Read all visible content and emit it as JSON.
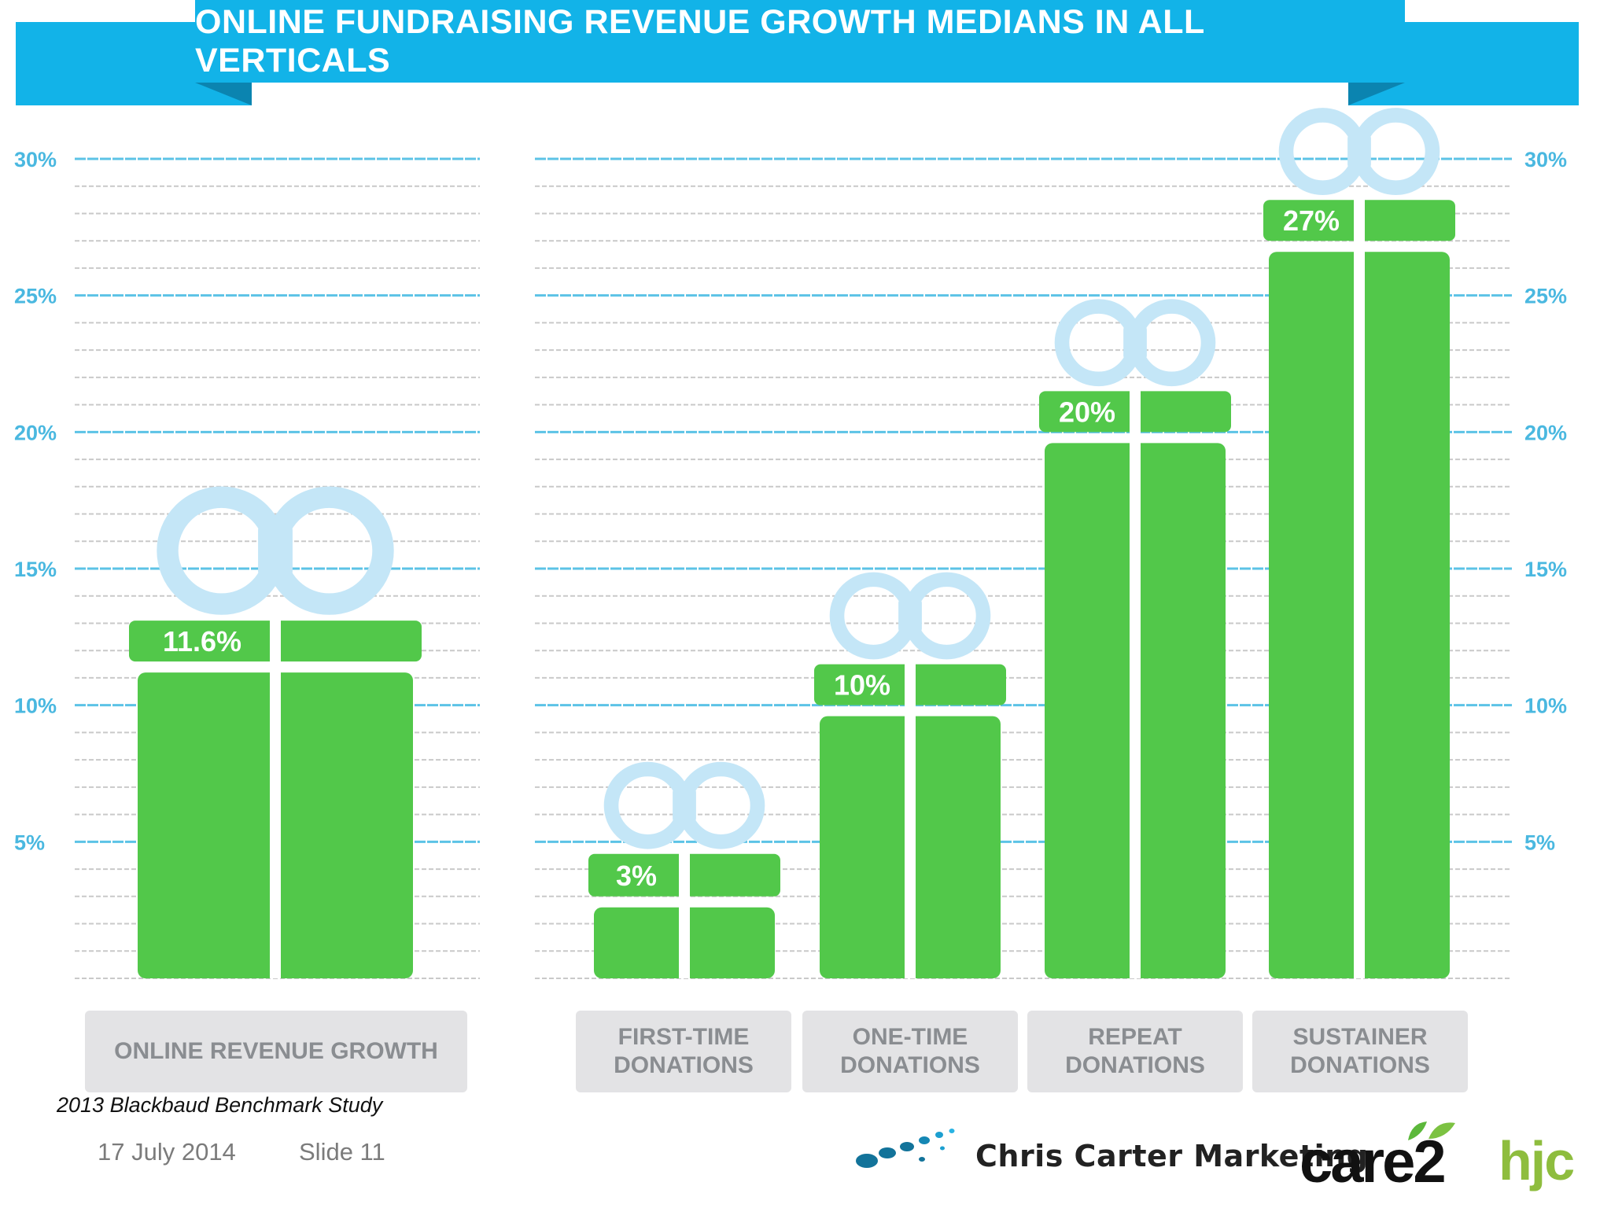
{
  "header": {
    "title": "ONLINE FUNDRAISING REVENUE GROWTH MEDIANS IN ALL VERTICALS"
  },
  "colors": {
    "banner": "#12b3e8",
    "banner_fold": "#0b84b0",
    "bar": "#52c84a",
    "bow": "#c4e6f7",
    "axis_label": "#4ab8e0",
    "gridline_major": "#5cc3e6",
    "gridline_minor": "#c9c9c9",
    "category_box": "#e3e3e5",
    "category_text": "#8a8d91"
  },
  "chart_data": [
    {
      "type": "bar",
      "categories": [
        "ONLINE REVENUE GROWTH"
      ],
      "values": [
        11.6
      ],
      "value_labels": [
        "11.6%"
      ],
      "ylim": [
        0,
        30
      ],
      "yticks": [
        5,
        10,
        15,
        20,
        25,
        30
      ],
      "ytick_labels": [
        "5%",
        "10%",
        "15%",
        "20%",
        "25%",
        "30%"
      ],
      "grid": true,
      "legend": "none"
    },
    {
      "type": "bar",
      "categories": [
        "FIRST-TIME DONATIONS",
        "ONE-TIME DONATIONS",
        "REPEAT DONATIONS",
        "SUSTAINER DONATIONS"
      ],
      "category_lines": [
        [
          "FIRST-TIME",
          "DONATIONS"
        ],
        [
          "ONE-TIME",
          "DONATIONS"
        ],
        [
          "REPEAT",
          "DONATIONS"
        ],
        [
          "SUSTAINER",
          "DONATIONS"
        ]
      ],
      "values": [
        3,
        10,
        20,
        27
      ],
      "value_labels": [
        "3%",
        "10%",
        "20%",
        "27%"
      ],
      "ylim": [
        0,
        30
      ],
      "yticks": [
        5,
        10,
        15,
        20,
        25,
        30
      ],
      "ytick_labels": [
        "5%",
        "10%",
        "15%",
        "20%",
        "25%",
        "30%"
      ],
      "grid": true,
      "legend": "none"
    }
  ],
  "source_note": "2013 Blackbaud Benchmark Study",
  "footer": {
    "date": "17 July 2014",
    "slide": "Slide 11"
  },
  "logos": {
    "ccm": "Chris  Carter  Marketing",
    "care2": "care2",
    "hjc": "hjc"
  }
}
